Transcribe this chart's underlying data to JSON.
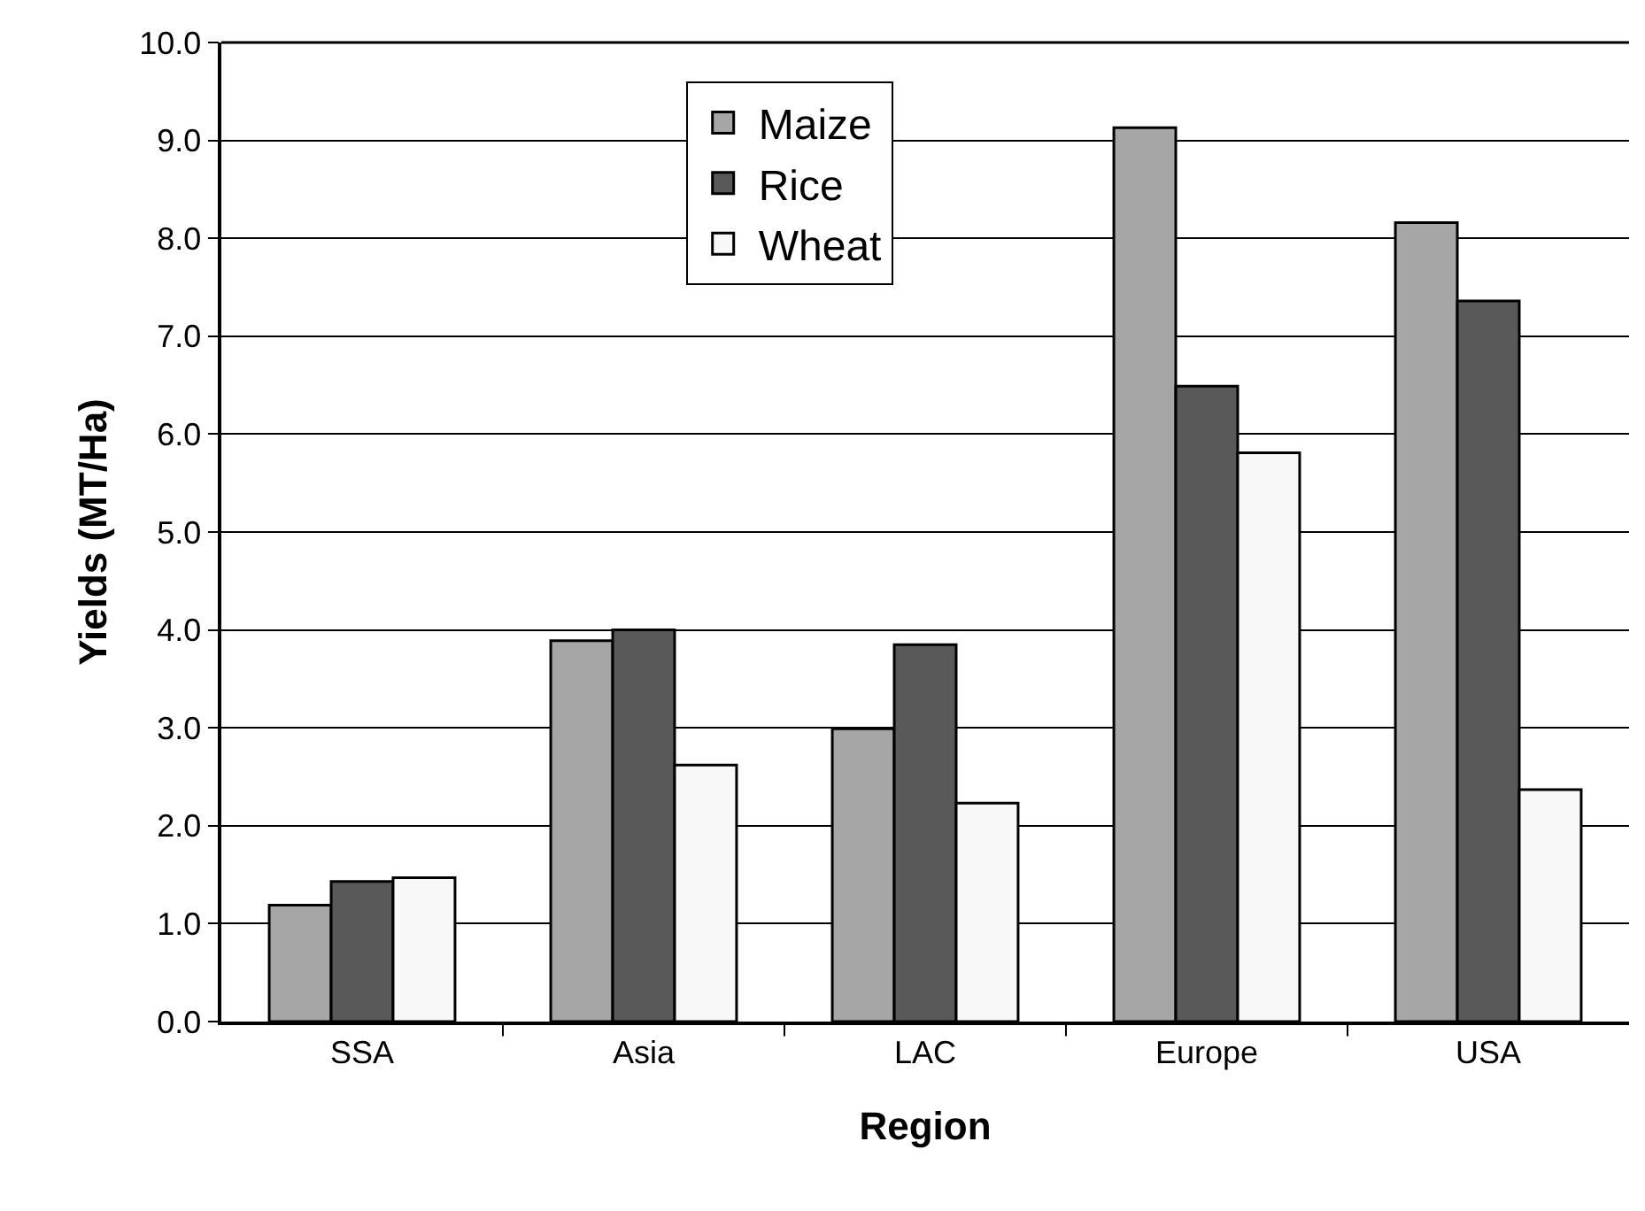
{
  "chart_data": {
    "type": "bar",
    "xlabel": "Region",
    "ylabel": "Yields (MT/Ha)",
    "categories": [
      "SSA",
      "Asia",
      "LAC",
      "Europe",
      "USA"
    ],
    "series": [
      {
        "name": "Maize",
        "color": "#a6a6a6",
        "values": [
          1.19,
          3.89,
          2.99,
          9.13,
          8.16
        ]
      },
      {
        "name": "Rice",
        "color": "#595959",
        "values": [
          1.43,
          4.0,
          3.85,
          6.49,
          7.36
        ]
      },
      {
        "name": "Wheat",
        "color": "#f8f8f8",
        "values": [
          1.47,
          2.62,
          2.23,
          5.81,
          2.37
        ]
      }
    ],
    "ylim": [
      0,
      10
    ],
    "yticks": [
      {
        "value": 0,
        "label": "0.0"
      },
      {
        "value": 1,
        "label": "1.0"
      },
      {
        "value": 2,
        "label": "2.0"
      },
      {
        "value": 3,
        "label": "3.0"
      },
      {
        "value": 4,
        "label": "4.0"
      },
      {
        "value": 5,
        "label": "5.0"
      },
      {
        "value": 6,
        "label": "6.0"
      },
      {
        "value": 7,
        "label": "7.0"
      },
      {
        "value": 8,
        "label": "8.0"
      },
      {
        "value": 9,
        "label": "9.0"
      },
      {
        "value": 10,
        "label": "10.0"
      }
    ],
    "grid": "y",
    "legend": "top"
  }
}
